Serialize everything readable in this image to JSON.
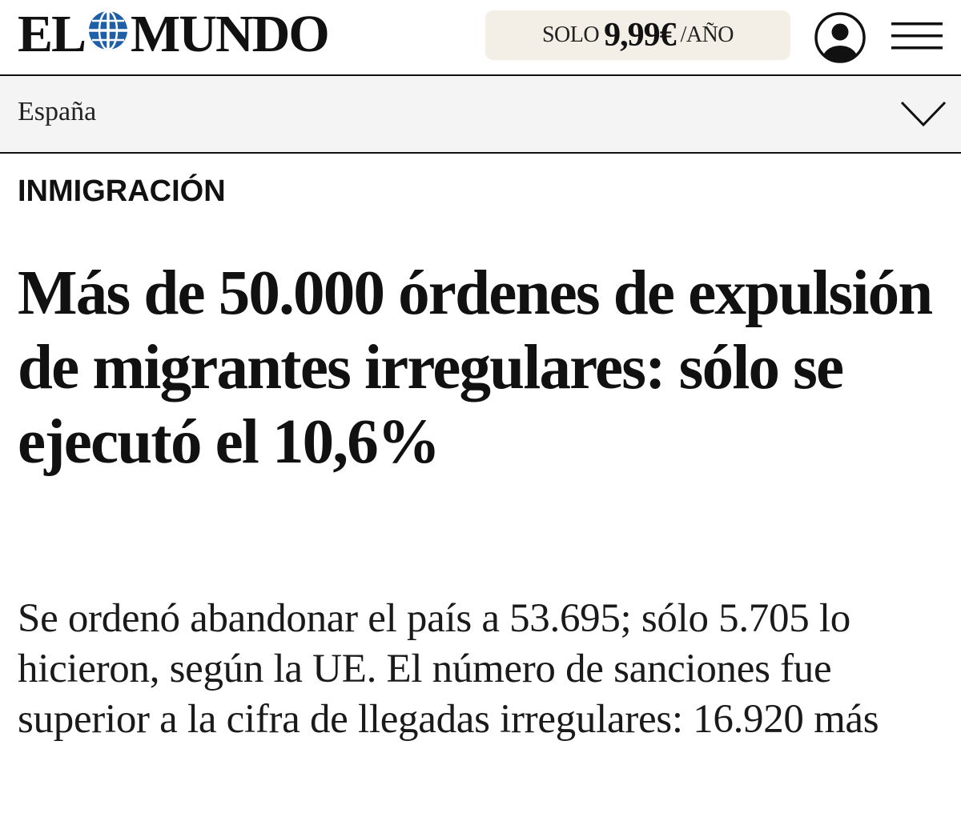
{
  "header": {
    "logo_left": "EL",
    "logo_right": "MUNDO",
    "logo_icon": "globe-icon",
    "promo": {
      "prefix": "SOLO",
      "price": "9,99€",
      "suffix": "/AÑO"
    },
    "user_icon": "user-account-icon",
    "menu_icon": "hamburger-menu-icon"
  },
  "section": {
    "label": "España",
    "icon": "chevron-down-icon"
  },
  "article": {
    "kicker": "INMIGRACIÓN",
    "headline": "Más de 50.000 órdenes de expulsión de migrantes irregulares: sólo se ejecutó el 10,6%",
    "subheadline": "Se ordenó abandonar el país a 53.695; sólo 5.705 lo hicieron, según la UE. El número de sanciones fue superior a la cifra de llegadas irregulares: 16.920 más"
  },
  "colors": {
    "logo_blue": "#1f5fa8",
    "promo_bg": "#f3efe7",
    "section_bg": "#f4f4f4",
    "text": "#111111"
  }
}
